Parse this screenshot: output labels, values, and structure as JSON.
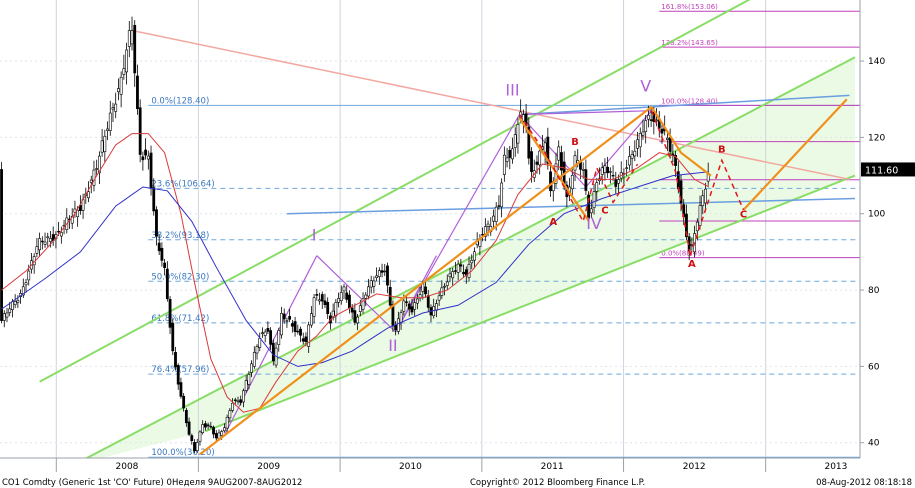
{
  "chart_data": {
    "type": "candlestick",
    "x_range": [
      "2007-08-09",
      "2013-09-01"
    ],
    "y_range": [
      36,
      156
    ],
    "y_ticks": [
      40,
      60,
      80,
      100,
      120,
      140
    ],
    "x_year_labels": [
      {
        "label": "2008",
        "date": "2008-07-01"
      },
      {
        "label": "2009",
        "date": "2009-07-01"
      },
      {
        "label": "2010",
        "date": "2010-07-01"
      },
      {
        "label": "2011",
        "date": "2011-07-01"
      },
      {
        "label": "2012",
        "date": "2012-07-01"
      },
      {
        "label": "2013",
        "date": "2013-07-01"
      }
    ],
    "year_boundaries": [
      "2008-01-01",
      "2009-01-01",
      "2010-01-01",
      "2011-01-01",
      "2012-01-01",
      "2013-01-01"
    ],
    "last_price": {
      "value": 111.6,
      "label": "111.60"
    },
    "price_path": [
      [
        "2007-08-13",
        72
      ],
      [
        "2007-10-01",
        79
      ],
      [
        "2007-11-15",
        92
      ],
      [
        "2008-01-07",
        95
      ],
      [
        "2008-03-03",
        102
      ],
      [
        "2008-04-14",
        112
      ],
      [
        "2008-05-19",
        126
      ],
      [
        "2008-06-16",
        135
      ],
      [
        "2008-07-07",
        146
      ],
      [
        "2008-07-14",
        148
      ],
      [
        "2008-08-04",
        116
      ],
      [
        "2008-08-25",
        115
      ],
      [
        "2008-09-15",
        93
      ],
      [
        "2008-10-06",
        85
      ],
      [
        "2008-10-27",
        64
      ],
      [
        "2008-11-17",
        52
      ],
      [
        "2008-12-08",
        42
      ],
      [
        "2008-12-22",
        38
      ],
      [
        "2009-01-12",
        45
      ],
      [
        "2009-02-02",
        44
      ],
      [
        "2009-02-16",
        41
      ],
      [
        "2009-03-09",
        44
      ],
      [
        "2009-03-30",
        51
      ],
      [
        "2009-04-20",
        51
      ],
      [
        "2009-05-11",
        58
      ],
      [
        "2009-06-08",
        68
      ],
      [
        "2009-06-29",
        70
      ],
      [
        "2009-07-13",
        61
      ],
      [
        "2009-08-03",
        73
      ],
      [
        "2009-08-24",
        72
      ],
      [
        "2009-09-14",
        69
      ],
      [
        "2009-10-05",
        66
      ],
      [
        "2009-10-26",
        78
      ],
      [
        "2009-11-16",
        78
      ],
      [
        "2009-12-07",
        72
      ],
      [
        "2009-12-28",
        78
      ],
      [
        "2010-01-11",
        80
      ],
      [
        "2010-02-08",
        72
      ],
      [
        "2010-03-08",
        79
      ],
      [
        "2010-04-05",
        84
      ],
      [
        "2010-04-26",
        86
      ],
      [
        "2010-05-17",
        71
      ],
      [
        "2010-05-24",
        69
      ],
      [
        "2010-06-14",
        77
      ],
      [
        "2010-07-05",
        75
      ],
      [
        "2010-08-02",
        81
      ],
      [
        "2010-08-23",
        73
      ],
      [
        "2010-09-13",
        79
      ],
      [
        "2010-10-04",
        83
      ],
      [
        "2010-11-01",
        86
      ],
      [
        "2010-11-22",
        84
      ],
      [
        "2010-12-13",
        91
      ],
      [
        "2011-01-03",
        95
      ],
      [
        "2011-01-24",
        97
      ],
      [
        "2011-02-14",
        103
      ],
      [
        "2011-02-28",
        115
      ],
      [
        "2011-03-21",
        116
      ],
      [
        "2011-04-08",
        126
      ],
      [
        "2011-04-25",
        124
      ],
      [
        "2011-05-06",
        110
      ],
      [
        "2011-05-23",
        114
      ],
      [
        "2011-06-13",
        119
      ],
      [
        "2011-06-27",
        105
      ],
      [
        "2011-07-18",
        117
      ],
      [
        "2011-08-08",
        104
      ],
      [
        "2011-08-29",
        114
      ],
      [
        "2011-09-19",
        111
      ],
      [
        "2011-10-04",
        99
      ],
      [
        "2011-10-24",
        109
      ],
      [
        "2011-11-14",
        112
      ],
      [
        "2011-12-12",
        108
      ],
      [
        "2012-01-09",
        113
      ],
      [
        "2012-02-06",
        118
      ],
      [
        "2012-03-01",
        125
      ],
      [
        "2012-03-13",
        126
      ],
      [
        "2012-04-02",
        123
      ],
      [
        "2012-04-23",
        119
      ],
      [
        "2012-05-14",
        112
      ],
      [
        "2012-06-04",
        99
      ],
      [
        "2012-06-21",
        89
      ],
      [
        "2012-07-09",
        98
      ],
      [
        "2012-07-23",
        104
      ],
      [
        "2012-08-08",
        111.6
      ]
    ],
    "ma_red": [
      [
        "2007-08-13",
        80
      ],
      [
        "2007-10-15",
        85
      ],
      [
        "2007-12-17",
        92
      ],
      [
        "2008-02-18",
        100
      ],
      [
        "2008-04-14",
        110
      ],
      [
        "2008-06-02",
        118
      ],
      [
        "2008-07-14",
        121
      ],
      [
        "2008-08-25",
        121
      ],
      [
        "2008-10-06",
        116
      ],
      [
        "2008-11-17",
        100
      ],
      [
        "2008-12-22",
        82
      ],
      [
        "2009-02-02",
        62
      ],
      [
        "2009-03-16",
        52
      ],
      [
        "2009-04-27",
        48
      ],
      [
        "2009-06-08",
        49
      ],
      [
        "2009-07-20",
        56
      ],
      [
        "2009-09-14",
        64
      ],
      [
        "2009-11-02",
        68
      ],
      [
        "2009-12-14",
        73
      ],
      [
        "2010-02-08",
        76
      ],
      [
        "2010-04-05",
        79
      ],
      [
        "2010-06-07",
        78
      ],
      [
        "2010-08-02",
        78
      ],
      [
        "2010-10-04",
        80
      ],
      [
        "2010-12-06",
        85
      ],
      [
        "2011-02-07",
        93
      ],
      [
        "2011-04-04",
        105
      ],
      [
        "2011-06-06",
        113
      ],
      [
        "2011-08-01",
        112
      ],
      [
        "2011-10-03",
        109
      ],
      [
        "2011-12-05",
        109
      ],
      [
        "2012-02-06",
        112
      ],
      [
        "2012-04-02",
        116
      ],
      [
        "2012-05-14",
        115
      ],
      [
        "2012-07-02",
        109
      ],
      [
        "2012-08-08",
        107
      ]
    ],
    "ma_blue": [
      [
        "2007-08-13",
        75
      ],
      [
        "2007-12-03",
        83
      ],
      [
        "2008-03-03",
        90
      ],
      [
        "2008-06-02",
        102
      ],
      [
        "2008-08-11",
        107
      ],
      [
        "2008-10-13",
        106
      ],
      [
        "2008-12-15",
        98
      ],
      [
        "2009-02-16",
        86
      ],
      [
        "2009-05-04",
        72
      ],
      [
        "2009-07-13",
        63
      ],
      [
        "2009-09-14",
        60
      ],
      [
        "2009-11-16",
        61
      ],
      [
        "2010-02-01",
        64
      ],
      [
        "2010-05-03",
        70
      ],
      [
        "2010-08-02",
        74
      ],
      [
        "2010-11-01",
        76
      ],
      [
        "2011-02-07",
        82
      ],
      [
        "2011-05-02",
        92
      ],
      [
        "2011-08-01",
        100
      ],
      [
        "2011-11-07",
        104
      ],
      [
        "2012-02-06",
        107
      ],
      [
        "2012-05-07",
        110
      ],
      [
        "2012-08-08",
        111
      ]
    ],
    "fib_blue": {
      "start": "2008-08-25",
      "end": "2013-09-01",
      "levels": [
        {
          "label": "0.0%(128.40)",
          "value": 128.4
        },
        {
          "label": "23.6%(106.64)",
          "value": 106.64
        },
        {
          "label": "38.2%(93.18)",
          "value": 93.18
        },
        {
          "label": "50.0%(82.30)",
          "value": 82.3
        },
        {
          "label": "61.8%(71.42)",
          "value": 71.42
        },
        {
          "label": "76.4%(57.96)",
          "value": 57.96
        },
        {
          "label": "100.0%(36.20)",
          "value": 36.2
        }
      ]
    },
    "fib_magenta": {
      "start": "2012-04-02",
      "end": "2013-09-01",
      "levels": [
        {
          "label": "161.8%(153.06)",
          "value": 153.06
        },
        {
          "label": "138.2%(143.65)",
          "value": 143.65
        },
        {
          "label": "100.0%(128.40)",
          "value": 128.4
        },
        {
          "label": "",
          "value": 118.9
        },
        {
          "label": "",
          "value": 108.9
        },
        {
          "label": "",
          "value": 98.1
        },
        {
          "label": "0.0%(88.49)",
          "value": 88.49
        }
      ]
    },
    "trend_lines": [
      {
        "color": "#88dd66",
        "width": 2,
        "points": [
          [
            "2007-11-19",
            56
          ],
          [
            "2013-08-19",
            171
          ]
        ]
      },
      {
        "color": "#88dd66",
        "width": 2,
        "points": [
          [
            "2008-02-11",
            34
          ],
          [
            "2013-08-19",
            141
          ]
        ]
      },
      {
        "color": "#88dd66",
        "width": 2,
        "points": [
          [
            "2009-01-19",
            43
          ],
          [
            "2013-08-19",
            110
          ]
        ]
      },
      {
        "color": "#f2a8a0",
        "width": 1.5,
        "points": [
          [
            "2008-07-14",
            148
          ],
          [
            "2013-08-05",
            109
          ]
        ]
      },
      {
        "color": "#6a9ee0",
        "width": 1.5,
        "points": [
          [
            "2009-08-17",
            100
          ],
          [
            "2013-08-19",
            104
          ]
        ]
      },
      {
        "color": "#6a9ee0",
        "width": 1.5,
        "points": [
          [
            "2011-04-08",
            126
          ],
          [
            "2013-08-05",
            131
          ]
        ]
      },
      {
        "color": "#b060d8",
        "width": 1.2,
        "points": [
          [
            "2009-03-09",
            42
          ],
          [
            "2009-11-02",
            89
          ]
        ]
      },
      {
        "color": "#b060d8",
        "width": 1.2,
        "points": [
          [
            "2010-05-24",
            69
          ],
          [
            "2011-04-08",
            126
          ]
        ]
      },
      {
        "color": "#b060d8",
        "width": 1.2,
        "points": [
          [
            "2011-04-08",
            126
          ],
          [
            "2011-09-26",
            107
          ]
        ]
      },
      {
        "color": "#b060d8",
        "width": 1.2,
        "points": [
          [
            "2011-09-26",
            107
          ],
          [
            "2012-03-13",
            127
          ]
        ]
      },
      {
        "color": "#b060d8",
        "width": 1.2,
        "points": [
          [
            "2009-11-02",
            89
          ],
          [
            "2010-05-24",
            69
          ]
        ]
      },
      {
        "color": "#b060d8",
        "width": 1.2,
        "points": [
          [
            "2010-05-24",
            69
          ],
          [
            "2010-09-06",
            89
          ]
        ]
      },
      {
        "color": "#b060d8",
        "width": 1.2,
        "points": [
          [
            "2011-04-08",
            126
          ],
          [
            "2012-03-13",
            127
          ]
        ]
      }
    ],
    "orange_lines": [
      {
        "points": [
          [
            "2009-01-05",
            37
          ],
          [
            "2012-03-13",
            128
          ]
        ]
      },
      {
        "points": [
          [
            "2012-03-13",
            128
          ],
          [
            "2012-05-28",
            116
          ],
          [
            "2012-08-13",
            110
          ]
        ]
      },
      {
        "points": [
          [
            "2012-11-05",
            101
          ],
          [
            "2013-07-29",
            130
          ]
        ]
      },
      {
        "points": [
          [
            "2011-04-08",
            125
          ],
          [
            "2011-10-04",
            98
          ]
        ]
      }
    ],
    "red_dashed": [
      {
        "points": [
          [
            "2011-04-08",
            126
          ],
          [
            "2011-06-13",
            116
          ],
          [
            "2011-09-19",
            98
          ],
          [
            "2011-10-24",
            112
          ],
          [
            "2011-12-05",
            103
          ],
          [
            "2012-02-06",
            113
          ]
        ]
      },
      {
        "points": [
          [
            "2012-03-13",
            127
          ],
          [
            "2012-05-14",
            111
          ],
          [
            "2012-06-21",
            89
          ]
        ]
      },
      {
        "points": [
          [
            "2012-06-21",
            89
          ],
          [
            "2012-09-10",
            114
          ],
          [
            "2012-11-05",
            101
          ]
        ]
      }
    ],
    "wave_labels_purple": [
      {
        "text": "I",
        "x": "2009-10-26",
        "y": 93
      },
      {
        "text": "II",
        "x": "2010-05-17",
        "y": 64
      },
      {
        "text": "III",
        "x": "2011-03-21",
        "y": 131
      },
      {
        "text": "IV",
        "x": "2011-10-17",
        "y": 96
      },
      {
        "text": "V",
        "x": "2012-02-27",
        "y": 132
      }
    ],
    "wave_labels_red": [
      {
        "text": "B",
        "x": "2011-08-29",
        "y": 118
      },
      {
        "text": "A",
        "x": "2011-07-04",
        "y": 97
      },
      {
        "text": "C",
        "x": "2011-11-14",
        "y": 100
      },
      {
        "text": "B",
        "x": "2012-09-10",
        "y": 116
      },
      {
        "text": "C",
        "x": "2012-11-05",
        "y": 99
      },
      {
        "text": "A",
        "x": "2012-06-25",
        "y": 86
      }
    ],
    "footer_left": "CO1 Comdty (Generic 1st 'CO' Future) 0Неделя 9AUG2007-8AUG2012",
    "footer_center": "Copyright© 2012 Bloomberg Finance L.P.",
    "footer_right": "08-Aug-2012 08:18:18"
  }
}
